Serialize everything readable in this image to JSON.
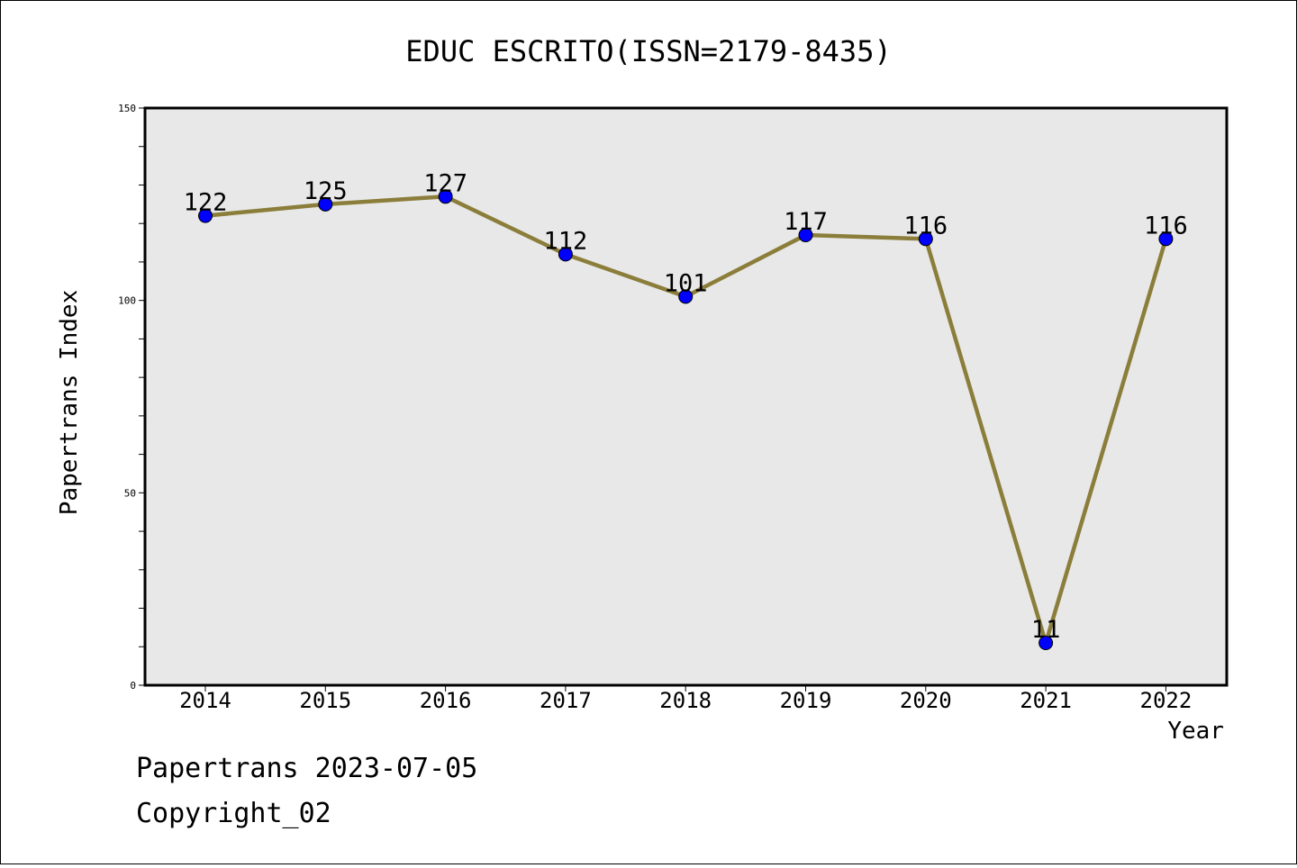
{
  "chart_data": {
    "type": "line",
    "title": "EDUC ESCRITO(ISSN=2179-8435)",
    "xlabel": "Year",
    "ylabel": "Papertrans Index",
    "categories": [
      "2014",
      "2015",
      "2016",
      "2017",
      "2018",
      "2019",
      "2020",
      "2021",
      "2022"
    ],
    "values": [
      122,
      125,
      127,
      112,
      101,
      117,
      116,
      11,
      116
    ],
    "data_labels": [
      "122",
      "125",
      "127",
      "112",
      "101",
      "117",
      "116",
      "11",
      "116"
    ],
    "ylim": [
      0,
      150
    ],
    "y_ticks": [
      "0",
      "50",
      "100",
      "150"
    ],
    "grid": false,
    "line_color": "#8b7d3a",
    "marker_color": "#0000ff",
    "plot_background": "#e8e8e8"
  },
  "footer": {
    "date_line": "Papertrans 2023-07-05",
    "copyright": "Copyright_02"
  }
}
